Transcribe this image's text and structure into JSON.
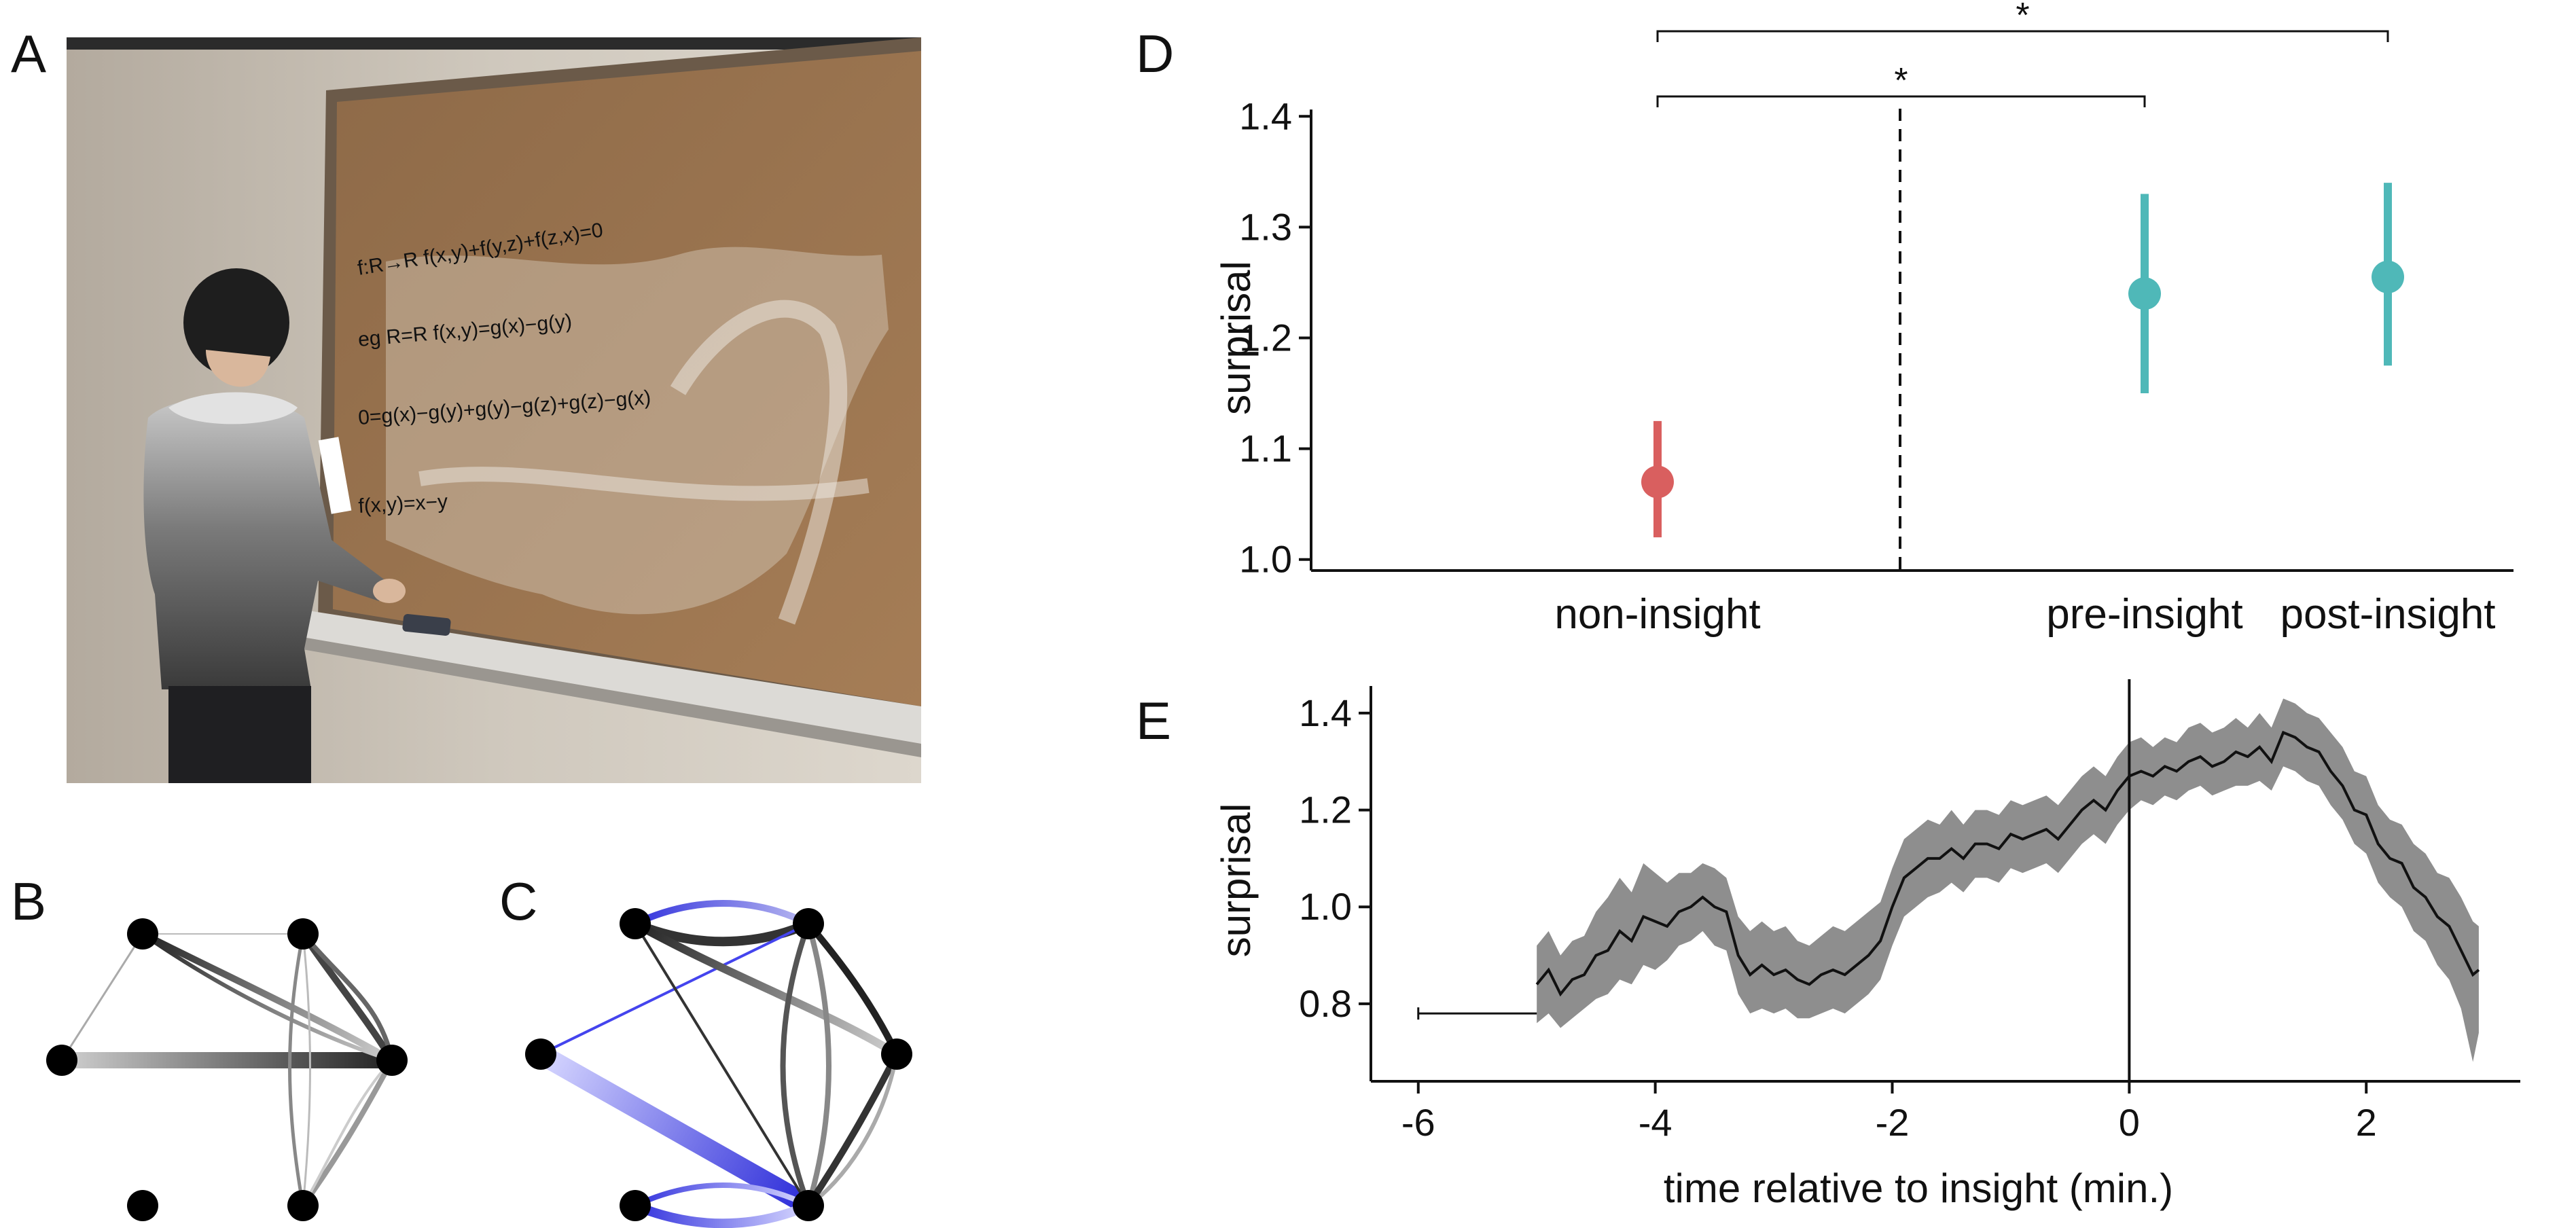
{
  "panel_labels": {
    "a": "A",
    "b": "B",
    "c": "C",
    "d": "D",
    "e": "E"
  },
  "photo": {
    "board_text": [
      "f:R→R  f(x,y)+f(y,z)+f(z,x)=0",
      "eg R=R  f(x,y)=g(x)−g(y)",
      "0=g(x)−g(y)+g(y)−g(z)+g(z)−g(x)",
      "f(x,y)=x−y"
    ]
  },
  "colors": {
    "non_insight": "#d95f5f",
    "insight": "#4fb8b8",
    "band": "#8e8e8e",
    "network_edge": "#222222",
    "network_blue": "#3333dd"
  },
  "chart_data": [
    {
      "id": "D",
      "type": "scatter",
      "ylabel": "surprisal",
      "categories": [
        "non-insight",
        "pre-insight",
        "post-insight"
      ],
      "points": [
        {
          "category": "non-insight",
          "mean": 1.07,
          "lower": 1.02,
          "upper": 1.125,
          "color": "#d95f5f"
        },
        {
          "category": "pre-insight",
          "mean": 1.24,
          "lower": 1.15,
          "upper": 1.33,
          "color": "#4fb8b8"
        },
        {
          "category": "post-insight",
          "mean": 1.255,
          "lower": 1.175,
          "upper": 1.34,
          "color": "#4fb8b8"
        }
      ],
      "ylim": [
        1.0,
        1.4
      ],
      "yticks": [
        "1.0",
        "1.1",
        "1.2",
        "1.3",
        "1.4"
      ],
      "significance": [
        {
          "from": "non-insight",
          "to": "pre-insight",
          "label": "*"
        },
        {
          "from": "non-insight",
          "to": "post-insight",
          "label": "*"
        }
      ],
      "divider": "dashed vertical line between non-insight and pre-insight"
    },
    {
      "id": "E",
      "type": "line",
      "xlabel": "time relative to insight (min.)",
      "ylabel": "surprisal",
      "xlim": [
        -6,
        3
      ],
      "ylim": [
        0.65,
        1.45
      ],
      "xticks": [
        "-6",
        "-4",
        "-2",
        "0",
        "2"
      ],
      "yticks": [
        "0.8",
        "1.0",
        "1.2",
        "1.4"
      ],
      "insight_marker_x": 0,
      "errorbar_segment": {
        "x": [
          -6,
          -5
        ],
        "y": 0.78
      },
      "series": {
        "x": [
          -5,
          -4.9,
          -4.8,
          -4.7,
          -4.6,
          -4.5,
          -4.4,
          -4.3,
          -4.2,
          -4.1,
          -4.0,
          -3.9,
          -3.8,
          -3.7,
          -3.6,
          -3.5,
          -3.4,
          -3.3,
          -3.2,
          -3.1,
          -3.0,
          -2.9,
          -2.8,
          -2.7,
          -2.6,
          -2.5,
          -2.4,
          -2.3,
          -2.2,
          -2.1,
          -2.0,
          -1.9,
          -1.8,
          -1.7,
          -1.6,
          -1.5,
          -1.4,
          -1.3,
          -1.2,
          -1.1,
          -1.0,
          -0.9,
          -0.8,
          -0.7,
          -0.6,
          -0.5,
          -0.4,
          -0.3,
          -0.2,
          -0.1,
          0.0,
          0.1,
          0.2,
          0.3,
          0.4,
          0.5,
          0.6,
          0.7,
          0.8,
          0.9,
          1.0,
          1.1,
          1.2,
          1.3,
          1.4,
          1.5,
          1.6,
          1.7,
          1.8,
          1.9,
          2.0,
          2.1,
          2.2,
          2.3,
          2.4,
          2.5,
          2.6,
          2.7,
          2.8,
          2.9,
          2.95
        ],
        "mean": [
          0.84,
          0.87,
          0.82,
          0.85,
          0.86,
          0.9,
          0.91,
          0.95,
          0.93,
          0.98,
          0.97,
          0.96,
          0.99,
          1.0,
          1.02,
          1.0,
          0.99,
          0.9,
          0.86,
          0.88,
          0.86,
          0.87,
          0.85,
          0.84,
          0.86,
          0.87,
          0.86,
          0.88,
          0.9,
          0.93,
          1.0,
          1.06,
          1.08,
          1.1,
          1.1,
          1.12,
          1.1,
          1.13,
          1.13,
          1.12,
          1.15,
          1.14,
          1.15,
          1.16,
          1.14,
          1.17,
          1.2,
          1.22,
          1.2,
          1.24,
          1.27,
          1.28,
          1.27,
          1.29,
          1.28,
          1.3,
          1.31,
          1.29,
          1.3,
          1.32,
          1.31,
          1.33,
          1.3,
          1.36,
          1.35,
          1.33,
          1.32,
          1.28,
          1.25,
          1.2,
          1.19,
          1.13,
          1.1,
          1.09,
          1.04,
          1.02,
          0.98,
          0.96,
          0.91,
          0.86,
          0.87
        ],
        "lower": [
          0.76,
          0.78,
          0.75,
          0.77,
          0.79,
          0.81,
          0.82,
          0.85,
          0.84,
          0.88,
          0.87,
          0.89,
          0.92,
          0.93,
          0.95,
          0.92,
          0.91,
          0.82,
          0.78,
          0.79,
          0.78,
          0.79,
          0.77,
          0.77,
          0.78,
          0.79,
          0.78,
          0.8,
          0.82,
          0.85,
          0.92,
          0.98,
          1.0,
          1.02,
          1.03,
          1.05,
          1.03,
          1.06,
          1.06,
          1.05,
          1.08,
          1.07,
          1.08,
          1.09,
          1.07,
          1.1,
          1.13,
          1.15,
          1.13,
          1.17,
          1.2,
          1.22,
          1.21,
          1.23,
          1.22,
          1.24,
          1.25,
          1.23,
          1.24,
          1.25,
          1.25,
          1.26,
          1.24,
          1.29,
          1.28,
          1.26,
          1.25,
          1.21,
          1.18,
          1.13,
          1.11,
          1.05,
          1.02,
          1.0,
          0.95,
          0.93,
          0.88,
          0.85,
          0.79,
          0.68,
          0.74
        ],
        "upper": [
          0.92,
          0.95,
          0.9,
          0.93,
          0.94,
          0.99,
          1.02,
          1.06,
          1.03,
          1.09,
          1.07,
          1.05,
          1.07,
          1.07,
          1.09,
          1.08,
          1.06,
          0.98,
          0.95,
          0.97,
          0.95,
          0.96,
          0.93,
          0.92,
          0.94,
          0.96,
          0.95,
          0.97,
          0.99,
          1.01,
          1.08,
          1.14,
          1.16,
          1.18,
          1.17,
          1.2,
          1.17,
          1.2,
          1.2,
          1.19,
          1.22,
          1.21,
          1.22,
          1.23,
          1.21,
          1.24,
          1.27,
          1.29,
          1.27,
          1.31,
          1.34,
          1.35,
          1.33,
          1.35,
          1.34,
          1.37,
          1.38,
          1.36,
          1.37,
          1.39,
          1.37,
          1.4,
          1.37,
          1.43,
          1.42,
          1.4,
          1.39,
          1.36,
          1.33,
          1.28,
          1.27,
          1.21,
          1.18,
          1.17,
          1.13,
          1.11,
          1.07,
          1.06,
          1.02,
          0.97,
          0.96
        ]
      }
    }
  ]
}
